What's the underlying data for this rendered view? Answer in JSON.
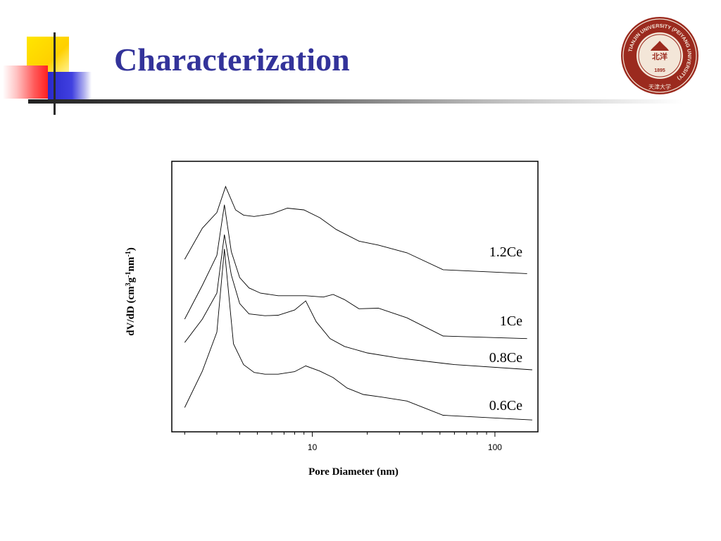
{
  "slide": {
    "title": "Characterization"
  },
  "logo": {
    "icon": "university-seal-icon",
    "ring_text": "TIANJIN UNIVERSITY (PEIYANG UNIVERSITY)",
    "center_text": "1895",
    "inner_text": "北洋",
    "bottom_text": "天津大学",
    "color": "#9b2a1e"
  },
  "colors": {
    "title": "#33339a",
    "accent_yellow": "#ffd000",
    "accent_blue": "#2a2acc",
    "accent_red": "#ff2020"
  },
  "chart_data": {
    "type": "line",
    "title": "",
    "xlabel": "Pore Diameter (nm)",
    "ylabel_parts": [
      "dV/dD (cm",
      "3",
      "g",
      "-1",
      "nm",
      "-1",
      ")"
    ],
    "xscale": "log",
    "xlim": [
      2,
      160
    ],
    "ylim": [
      0,
      1
    ],
    "xticks": [
      {
        "value": 10,
        "label": "10"
      },
      {
        "value": 100,
        "label": "100"
      }
    ],
    "yticks_shown": false,
    "grid": false,
    "legend": "none (series labeled inline at right)",
    "series": [
      {
        "name": "1.2Ce",
        "points": [
          [
            2.0,
            0.65
          ],
          [
            2.5,
            0.77
          ],
          [
            3.0,
            0.83
          ],
          [
            3.35,
            0.93
          ],
          [
            3.8,
            0.84
          ],
          [
            4.2,
            0.82
          ],
          [
            4.8,
            0.815
          ],
          [
            6.0,
            0.825
          ],
          [
            7.3,
            0.847
          ],
          [
            9.0,
            0.84
          ],
          [
            11.0,
            0.81
          ],
          [
            13.5,
            0.765
          ],
          [
            18.0,
            0.72
          ],
          [
            23.0,
            0.705
          ],
          [
            33.0,
            0.675
          ],
          [
            52.0,
            0.61
          ],
          [
            150.0,
            0.595
          ]
        ]
      },
      {
        "name": "1Ce",
        "points": [
          [
            2.0,
            0.42
          ],
          [
            2.5,
            0.55
          ],
          [
            3.0,
            0.665
          ],
          [
            3.3,
            0.86
          ],
          [
            3.6,
            0.68
          ],
          [
            4.0,
            0.58
          ],
          [
            4.5,
            0.54
          ],
          [
            5.2,
            0.52
          ],
          [
            6.5,
            0.51
          ],
          [
            8.0,
            0.51
          ],
          [
            9.2,
            0.51
          ],
          [
            11.5,
            0.505
          ],
          [
            13.0,
            0.515
          ],
          [
            15.0,
            0.495
          ],
          [
            18.0,
            0.46
          ],
          [
            23.0,
            0.462
          ],
          [
            33.0,
            0.425
          ],
          [
            52.0,
            0.355
          ],
          [
            150.0,
            0.345
          ]
        ]
      },
      {
        "name": "0.8Ce",
        "points": [
          [
            2.0,
            0.33
          ],
          [
            2.5,
            0.42
          ],
          [
            3.0,
            0.52
          ],
          [
            3.3,
            0.745
          ],
          [
            3.6,
            0.59
          ],
          [
            4.0,
            0.48
          ],
          [
            4.5,
            0.44
          ],
          [
            5.5,
            0.433
          ],
          [
            6.5,
            0.435
          ],
          [
            8.0,
            0.455
          ],
          [
            9.2,
            0.49
          ],
          [
            10.5,
            0.41
          ],
          [
            12.5,
            0.345
          ],
          [
            15.0,
            0.315
          ],
          [
            20.0,
            0.29
          ],
          [
            30.0,
            0.27
          ],
          [
            60.0,
            0.245
          ],
          [
            160.0,
            0.225
          ]
        ]
      },
      {
        "name": "0.6Ce",
        "points": [
          [
            2.0,
            0.08
          ],
          [
            2.5,
            0.22
          ],
          [
            3.0,
            0.37
          ],
          [
            3.3,
            0.69
          ],
          [
            3.7,
            0.325
          ],
          [
            4.2,
            0.245
          ],
          [
            4.8,
            0.215
          ],
          [
            5.5,
            0.208
          ],
          [
            6.5,
            0.208
          ],
          [
            8.0,
            0.218
          ],
          [
            9.2,
            0.24
          ],
          [
            11.0,
            0.22
          ],
          [
            13.0,
            0.195
          ],
          [
            15.5,
            0.155
          ],
          [
            19.0,
            0.13
          ],
          [
            24.0,
            0.12
          ],
          [
            33.0,
            0.105
          ],
          [
            52.0,
            0.05
          ],
          [
            160.0,
            0.032
          ]
        ]
      }
    ],
    "annotations": [
      "1.2Ce",
      "1Ce",
      "0.8Ce",
      "0.6Ce"
    ]
  }
}
